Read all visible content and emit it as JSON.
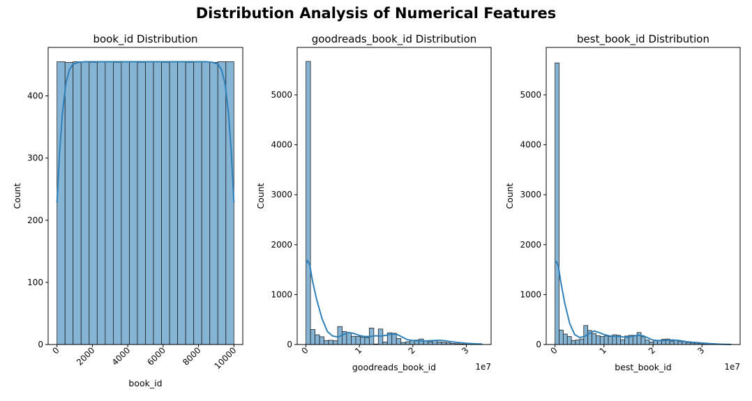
{
  "suptitle": "Distribution Analysis of Numerical Features",
  "chart_data": [
    {
      "type": "histogram",
      "title": "book_id Distribution",
      "xlabel": "book_id",
      "ylabel": "Count",
      "xlim": [
        -500,
        10500
      ],
      "ylim": [
        0,
        478
      ],
      "xticks": [
        0,
        2000,
        4000,
        6000,
        8000,
        10000
      ],
      "xtick_labels": [
        "0",
        "2000",
        "4000",
        "6000",
        "8000",
        "10000"
      ],
      "yticks": [
        0,
        100,
        200,
        300,
        400
      ],
      "ytick_labels": [
        "0",
        "100",
        "200",
        "300",
        "400"
      ],
      "x_offset_label": "",
      "xtick_rotation": 45,
      "bins": {
        "start": 1,
        "end": 10000,
        "count": 22
      },
      "values": [
        455,
        454,
        455,
        455,
        454,
        455,
        455,
        454,
        455,
        455,
        454,
        455,
        455,
        454,
        455,
        455,
        454,
        455,
        455,
        454,
        455,
        455
      ],
      "kde": {
        "x": [
          0,
          150,
          300,
          500,
          700,
          900,
          1200,
          1600,
          2000,
          3000,
          4000,
          5000,
          6000,
          7000,
          8000,
          8400,
          8800,
          9100,
          9300,
          9500,
          9700,
          9850,
          10000
        ],
        "y": [
          228,
          310,
          370,
          420,
          442,
          451,
          454,
          455,
          455,
          455,
          455,
          455,
          455,
          455,
          455,
          455,
          454,
          451,
          442,
          420,
          370,
          310,
          228
        ]
      }
    },
    {
      "type": "histogram",
      "title": "goodreads_book_id Distribution",
      "xlabel": "goodreads_book_id",
      "ylabel": "Count",
      "xlim": [
        -1650000,
        34650000
      ],
      "ylim": [
        0,
        5950
      ],
      "xticks": [
        0,
        10000000,
        20000000,
        30000000
      ],
      "xtick_labels": [
        "0",
        "1",
        "2",
        "3"
      ],
      "yticks": [
        0,
        1000,
        2000,
        3000,
        4000,
        5000
      ],
      "ytick_labels": [
        "0",
        "1000",
        "2000",
        "3000",
        "4000",
        "5000"
      ],
      "x_offset_label": "1e7",
      "xtick_rotation": 45,
      "bins": {
        "start": 0,
        "end": 33000000,
        "count": 39
      },
      "values": [
        5670,
        300,
        195,
        155,
        80,
        85,
        75,
        360,
        260,
        230,
        165,
        160,
        150,
        140,
        330,
        10,
        310,
        50,
        235,
        225,
        120,
        40,
        55,
        75,
        90,
        110,
        70,
        55,
        80,
        50,
        45,
        35,
        20,
        15,
        10,
        5,
        3,
        2,
        1
      ],
      "kde": {
        "x": [
          0,
          300000,
          700000,
          1200000,
          2000000,
          3000000,
          4000000,
          5000000,
          6000000,
          7000000,
          8000000,
          9000000,
          10000000,
          11000000,
          12000000,
          13000000,
          14000000,
          15000000,
          16000000,
          17000000,
          18000000,
          19000000,
          20000000,
          21000000,
          22000000,
          23000000,
          24000000,
          25000000,
          26000000,
          27000000,
          28000000,
          29000000,
          30000000,
          31000000,
          32000000,
          33000000
        ],
        "y": [
          1620,
          1680,
          1600,
          1280,
          900,
          520,
          260,
          170,
          150,
          200,
          240,
          220,
          180,
          160,
          160,
          175,
          170,
          185,
          210,
          205,
          150,
          95,
          80,
          75,
          70,
          75,
          80,
          85,
          75,
          60,
          45,
          35,
          25,
          18,
          12,
          8
        ]
      }
    },
    {
      "type": "histogram",
      "title": "best_book_id Distribution",
      "xlabel": "best_book_id",
      "ylabel": "Count",
      "xlim": [
        -1800000,
        37800000
      ],
      "ylim": [
        0,
        5950
      ],
      "xticks": [
        0,
        10000000,
        20000000,
        30000000
      ],
      "xtick_labels": [
        "0",
        "1",
        "2",
        "3"
      ],
      "yticks": [
        0,
        1000,
        2000,
        3000,
        4000,
        5000
      ],
      "ytick_labels": [
        "0",
        "1000",
        "2000",
        "3000",
        "4000",
        "5000"
      ],
      "x_offset_label": "1e7",
      "xtick_rotation": 45,
      "bins": {
        "start": 0,
        "end": 36000000,
        "count": 43
      },
      "values": [
        5640,
        290,
        210,
        160,
        80,
        90,
        110,
        380,
        280,
        220,
        175,
        160,
        170,
        160,
        195,
        185,
        95,
        170,
        185,
        185,
        240,
        155,
        90,
        50,
        75,
        80,
        105,
        110,
        70,
        85,
        60,
        55,
        40,
        30,
        25,
        20,
        15,
        10,
        6,
        4,
        3,
        2,
        1
      ],
      "kde": {
        "x": [
          0,
          300000,
          700000,
          1200000,
          2000000,
          3000000,
          4000000,
          5000000,
          6000000,
          7000000,
          8000000,
          9000000,
          10000000,
          11000000,
          12000000,
          13000000,
          14000000,
          15000000,
          16000000,
          17000000,
          18000000,
          19000000,
          20000000,
          21000000,
          22000000,
          23000000,
          24000000,
          25000000,
          26000000,
          27000000,
          28000000,
          29000000,
          30000000,
          31000000,
          32000000,
          33000000,
          34000000,
          35000000,
          36000000
        ],
        "y": [
          1640,
          1660,
          1560,
          1240,
          820,
          420,
          200,
          140,
          160,
          220,
          270,
          240,
          200,
          175,
          165,
          160,
          150,
          145,
          170,
          185,
          175,
          130,
          90,
          80,
          80,
          85,
          90,
          85,
          70,
          55,
          45,
          38,
          30,
          22,
          15,
          10,
          6,
          4,
          2
        ]
      }
    }
  ]
}
